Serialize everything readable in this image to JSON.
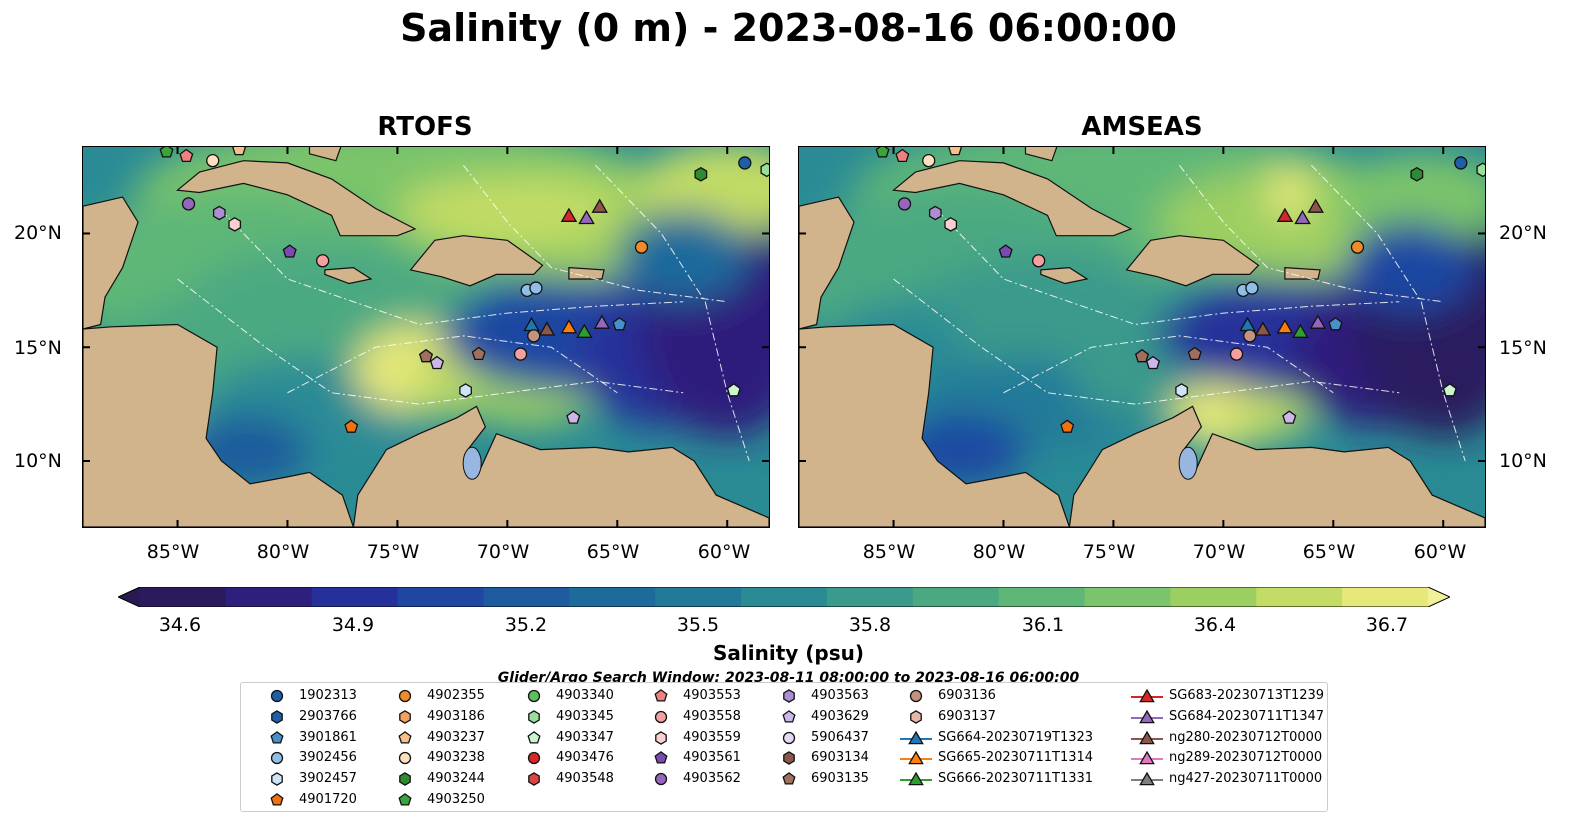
{
  "title": "Salinity (0 m) - 2023-08-16 06:00:00",
  "panels": [
    {
      "title": "RTOFS"
    },
    {
      "title": "AMSEAS"
    }
  ],
  "lat_labels": [
    "20°N",
    "15°N",
    "10°N"
  ],
  "lon_labels": [
    "85°W",
    "80°W",
    "75°W",
    "70°W",
    "65°W",
    "60°W"
  ],
  "colorbar": {
    "label": "Salinity (psu)",
    "ticks": [
      "34.6",
      "34.9",
      "35.2",
      "35.5",
      "35.8",
      "36.1",
      "36.4",
      "36.7"
    ],
    "range": [
      34.6,
      36.7
    ],
    "colors": [
      "#2c1a5e",
      "#2f1f7d",
      "#26309a",
      "#1f47a2",
      "#1e5a9e",
      "#1d6b9b",
      "#227a99",
      "#2a8b95",
      "#3a9a8c",
      "#4ba982",
      "#5fb777",
      "#7bc46b",
      "#9ccf62",
      "#c2dc65",
      "#e6e87a"
    ]
  },
  "search_window": "Glider/Argo Search Window: 2023-08-11 08:00:00 to 2023-08-16 06:00:00",
  "legend": [
    {
      "label": "1902313",
      "shape": "circle",
      "color": "#1f5fa8"
    },
    {
      "label": "2903766",
      "shape": "hexagon",
      "color": "#1f5fa8"
    },
    {
      "label": "3901861",
      "shape": "pentagon",
      "color": "#4a90c8"
    },
    {
      "label": "3902456",
      "shape": "circle",
      "color": "#8fbfe6"
    },
    {
      "label": "3902457",
      "shape": "hexagon",
      "color": "#cde4f6"
    },
    {
      "label": "4901720",
      "shape": "pentagon",
      "color": "#ee7212"
    },
    {
      "label": "4902355",
      "shape": "circle",
      "color": "#f08a2a"
    },
    {
      "label": "4903186",
      "shape": "hexagon",
      "color": "#f3a262"
    },
    {
      "label": "4903237",
      "shape": "pentagon",
      "color": "#f6c08a"
    },
    {
      "label": "4903238",
      "shape": "circle",
      "color": "#fde0c0"
    },
    {
      "label": "4903244",
      "shape": "hexagon",
      "color": "#2e8b2e"
    },
    {
      "label": "4903250",
      "shape": "pentagon",
      "color": "#3aa33a"
    },
    {
      "label": "4903340",
      "shape": "circle",
      "color": "#5cc15c"
    },
    {
      "label": "4903345",
      "shape": "hexagon",
      "color": "#99de99"
    },
    {
      "label": "4903347",
      "shape": "pentagon",
      "color": "#cdf5cd"
    },
    {
      "label": "4903476",
      "shape": "circle",
      "color": "#d62728"
    },
    {
      "label": "4903548",
      "shape": "hexagon",
      "color": "#d94545"
    },
    {
      "label": "4903553",
      "shape": "pentagon",
      "color": "#f08080"
    },
    {
      "label": "4903558",
      "shape": "circle",
      "color": "#f4a0a0"
    },
    {
      "label": "4903559",
      "shape": "hexagon",
      "color": "#f9cfcf"
    },
    {
      "label": "4903561",
      "shape": "pentagon",
      "color": "#7b4ab0"
    },
    {
      "label": "4903562",
      "shape": "circle",
      "color": "#9467bd"
    },
    {
      "label": "4903563",
      "shape": "hexagon",
      "color": "#ad8ed3"
    },
    {
      "label": "4903629",
      "shape": "pentagon",
      "color": "#cdb6ea"
    },
    {
      "label": "5906437",
      "shape": "circle",
      "color": "#e6d8f4"
    },
    {
      "label": "6903134",
      "shape": "hexagon",
      "color": "#8c564b"
    },
    {
      "label": "6903135",
      "shape": "pentagon",
      "color": "#a0705f"
    },
    {
      "label": "6903136",
      "shape": "circle",
      "color": "#c4937f"
    },
    {
      "label": "6903137",
      "shape": "hexagon",
      "color": "#e6b7a3"
    },
    {
      "label": "SG664-20230719T1323",
      "shape": "triangle-line",
      "color": "#1f77b4"
    },
    {
      "label": "SG665-20230711T1314",
      "shape": "triangle-line",
      "color": "#ff7f0e"
    },
    {
      "label": "SG666-20230711T1331",
      "shape": "triangle-line",
      "color": "#2ca02c"
    },
    {
      "label": "SG683-20230713T1239",
      "shape": "triangle-line",
      "color": "#d62728"
    },
    {
      "label": "SG684-20230711T1347",
      "shape": "triangle-line",
      "color": "#9467bd"
    },
    {
      "label": "ng280-20230712T0000",
      "shape": "triangle-line",
      "color": "#8c564b"
    },
    {
      "label": "ng289-20230712T0000",
      "shape": "triangle-line",
      "color": "#e377c2"
    },
    {
      "label": "ng427-20230711T0000",
      "shape": "triangle-line",
      "color": "#7f7f7f"
    }
  ],
  "markers": [
    {
      "id": "4903250",
      "lon": -85.5,
      "lat": 23.6
    },
    {
      "id": "4903553",
      "lon": -84.6,
      "lat": 23.4
    },
    {
      "id": "4903238",
      "lon": -83.4,
      "lat": 23.2
    },
    {
      "id": "4903237",
      "lon": -82.2,
      "lat": 23.7
    },
    {
      "id": "4903562",
      "lon": -84.5,
      "lat": 21.3
    },
    {
      "id": "4903563",
      "lon": -83.1,
      "lat": 20.9
    },
    {
      "id": "4903559",
      "lon": -82.4,
      "lat": 20.4
    },
    {
      "id": "4903561",
      "lon": -79.9,
      "lat": 19.2
    },
    {
      "id": "4903558",
      "lon": -78.4,
      "lat": 18.8
    },
    {
      "id": "3902456",
      "lon": -69.1,
      "lat": 17.5
    },
    {
      "id": "3902456",
      "lon": -68.7,
      "lat": 17.6
    },
    {
      "id": "4902355",
      "lon": -63.9,
      "lat": 19.4
    },
    {
      "id": "4903244",
      "lon": -61.2,
      "lat": 22.6
    },
    {
      "id": "1902313",
      "lon": -59.2,
      "lat": 23.1
    },
    {
      "id": "4903345",
      "lon": -58.2,
      "lat": 22.8
    },
    {
      "id": "SG664-20230719T1323",
      "lon": -68.9,
      "lat": 16.0
    },
    {
      "id": "ng280-20230712T0000",
      "lon": -68.2,
      "lat": 15.8
    },
    {
      "id": "SG665-20230711T1314",
      "lon": -67.2,
      "lat": 15.9
    },
    {
      "id": "SG666-20230711T1331",
      "lon": -66.5,
      "lat": 15.7
    },
    {
      "id": "SG684-20230711T1347",
      "lon": -65.7,
      "lat": 16.1
    },
    {
      "id": "3901861",
      "lon": -64.9,
      "lat": 16.0
    },
    {
      "id": "SG683-20230713T1239",
      "lon": -67.2,
      "lat": 20.8
    },
    {
      "id": "SG684-20230711T1347",
      "lon": -66.4,
      "lat": 20.7
    },
    {
      "id": "ng280-20230712T0000",
      "lon": -65.8,
      "lat": 21.2
    },
    {
      "id": "6903135",
      "lon": -73.7,
      "lat": 14.6
    },
    {
      "id": "4903629",
      "lon": -73.2,
      "lat": 14.3
    },
    {
      "id": "6903135",
      "lon": -71.3,
      "lat": 14.7
    },
    {
      "id": "6903136",
      "lon": -68.8,
      "lat": 15.5
    },
    {
      "id": "4903558",
      "lon": -69.4,
      "lat": 14.7
    },
    {
      "id": "3902457",
      "lon": -71.9,
      "lat": 13.1
    },
    {
      "id": "4901720",
      "lon": -77.1,
      "lat": 11.5
    },
    {
      "id": "4903629",
      "lon": -67.0,
      "lat": 11.9
    },
    {
      "id": "4903347",
      "lon": -59.7,
      "lat": 13.1
    }
  ]
}
